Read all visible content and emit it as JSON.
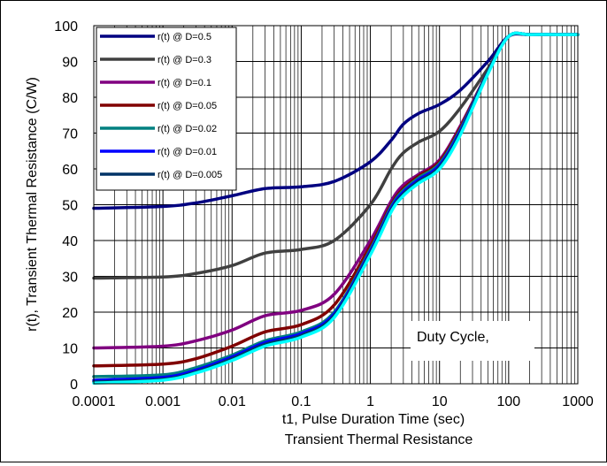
{
  "chart_data": {
    "type": "line",
    "x_scale": "log",
    "xlim": [
      0.0001,
      1000
    ],
    "ylim": [
      0,
      100
    ],
    "x_ticks": [
      "0.0001",
      "0.001",
      "0.01",
      "0.1",
      "1",
      "10",
      "100",
      "1000"
    ],
    "y_ticks": [
      "0",
      "10",
      "20",
      "30",
      "40",
      "50",
      "60",
      "70",
      "80",
      "90",
      "100"
    ],
    "xlabel": "t1, Pulse Duration Time (sec)",
    "ylabel": "r(t), Transient Thermal Resistance (C/W)",
    "caption": "Transient Thermal Resistance",
    "annotation": "Duty Cycle,",
    "grid": true,
    "legend_position": "top-left",
    "series": [
      {
        "name": "r(t) @ D=0.5",
        "color": "#000080",
        "x": [
          0.0001,
          0.001,
          0.003,
          0.01,
          0.03,
          0.1,
          0.3,
          1,
          2,
          3,
          5,
          10,
          20,
          50,
          100,
          200,
          500,
          1000
        ],
        "y": [
          49,
          49.5,
          50.5,
          52.5,
          54.5,
          55,
          56.5,
          62,
          68,
          72.5,
          75.5,
          78,
          82,
          90,
          97,
          97.5,
          97.5,
          97.5
        ]
      },
      {
        "name": "r(t) @ D=0.3",
        "color": "#404040",
        "x": [
          0.0001,
          0.001,
          0.003,
          0.01,
          0.03,
          0.1,
          0.3,
          1,
          2,
          3,
          5,
          10,
          20,
          50,
          100,
          200,
          500,
          1000
        ],
        "y": [
          29.5,
          29.8,
          30.8,
          33,
          36.5,
          37.5,
          40,
          50,
          60,
          64.5,
          67.5,
          70.5,
          77,
          88,
          97,
          97.5,
          97.5,
          97.5
        ]
      },
      {
        "name": "r(t) @ D=0.1",
        "color": "#800080",
        "x": [
          0.0001,
          0.001,
          0.003,
          0.01,
          0.03,
          0.1,
          0.3,
          1,
          2,
          3,
          5,
          10,
          20,
          50,
          100,
          200,
          500,
          1000
        ],
        "y": [
          10,
          10.5,
          12,
          15,
          19,
          20.5,
          25,
          40,
          51,
          55.5,
          58.5,
          62.5,
          72,
          87,
          97,
          97.5,
          97.5,
          97.5
        ]
      },
      {
        "name": "r(t) @ D=0.05",
        "color": "#800000",
        "x": [
          0.0001,
          0.001,
          0.003,
          0.01,
          0.03,
          0.1,
          0.3,
          1,
          2,
          3,
          5,
          10,
          20,
          50,
          100,
          200,
          500,
          1000
        ],
        "y": [
          5,
          5.5,
          7,
          10.5,
          14.5,
          16.5,
          22,
          38.5,
          50,
          54.5,
          58,
          62,
          71.5,
          87,
          97,
          97.5,
          97.5,
          97.5
        ]
      },
      {
        "name": "r(t) @ D=0.02",
        "color": "#008080",
        "x": [
          0.0001,
          0.001,
          0.003,
          0.01,
          0.03,
          0.1,
          0.3,
          1,
          2,
          3,
          5,
          10,
          20,
          50,
          100,
          200,
          500,
          1000
        ],
        "y": [
          2,
          2.5,
          4.5,
          8,
          12,
          14.5,
          20,
          37.5,
          49.5,
          54,
          57.5,
          61.5,
          71,
          87,
          97,
          97.5,
          97.5,
          97.5
        ]
      },
      {
        "name": "r(t) @ D=0.01",
        "color": "#0000ff",
        "x": [
          0.0001,
          0.001,
          0.003,
          0.01,
          0.03,
          0.1,
          0.3,
          1,
          2,
          3,
          5,
          10,
          20,
          50,
          100,
          200,
          500,
          1000
        ],
        "y": [
          1,
          1.8,
          3.8,
          7.5,
          11.5,
          14,
          19.5,
          37,
          49,
          53.5,
          57,
          61,
          70.5,
          87,
          97,
          97.5,
          97.5,
          97.5
        ]
      },
      {
        "name": "r(t) @ D=0.005",
        "color": "#003366",
        "x": [
          0.0001,
          0.001,
          0.003,
          0.01,
          0.03,
          0.1,
          0.3,
          1,
          2,
          3,
          5,
          10,
          20,
          50,
          100,
          200,
          500,
          1000
        ],
        "y": [
          0.5,
          1.3,
          3.3,
          7,
          11,
          13.5,
          19,
          36.5,
          48.5,
          53,
          56.5,
          60.5,
          70,
          87,
          97,
          97.5,
          97.5,
          97.5
        ]
      },
      {
        "name": "",
        "color": "#00ffff",
        "x": [
          0.0001,
          0.001,
          0.003,
          0.01,
          0.03,
          0.1,
          0.3,
          1,
          2,
          3,
          5,
          10,
          20,
          50,
          100,
          200,
          500,
          1000
        ],
        "y": [
          0.2,
          1,
          3,
          6.5,
          10.5,
          13,
          18.5,
          36,
          48,
          52.5,
          56,
          60,
          69.5,
          86.5,
          97,
          97.5,
          97.5,
          97.5
        ]
      }
    ]
  }
}
